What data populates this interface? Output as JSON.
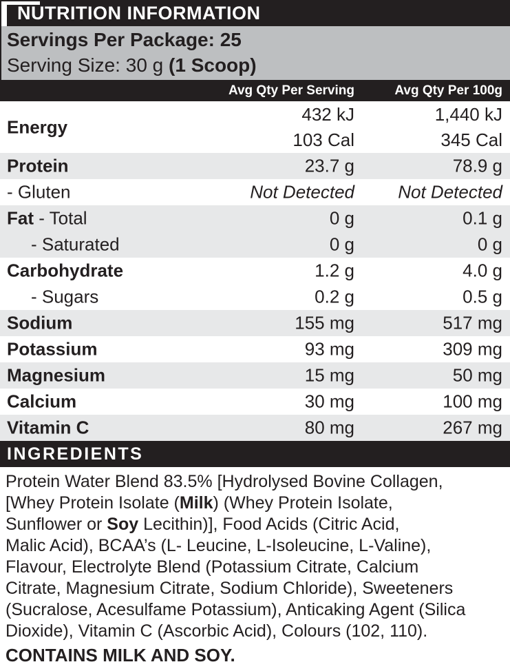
{
  "colors": {
    "ink_black": "#231f20",
    "band_gray": "#bdbfc1",
    "stripe_gray": "#e7e8e9",
    "text_white": "#ffffff"
  },
  "header": {
    "title": "NUTRITION INFORMATION",
    "servings_line": "Servings Per Package: 25",
    "serving_size_prefix": "Serving Size: 30 g ",
    "serving_size_bold": "(1 Scoop)"
  },
  "columns": {
    "per_serving": "Avg Qty Per Serving",
    "per_100g": "Avg Qty Per 100g"
  },
  "table": {
    "rows": [
      {
        "label_bold": "Energy",
        "label_plain": "",
        "serving": [
          "432 kJ",
          "103 Cal"
        ],
        "per100": [
          "1,440 kJ",
          "345 Cal"
        ],
        "shaded": false,
        "indent": false,
        "italic": false,
        "tall": true
      },
      {
        "label_bold": "Protein",
        "label_plain": "",
        "serving": "23.7 g",
        "per100": "78.9 g",
        "shaded": true,
        "indent": false,
        "italic": false,
        "tall": false
      },
      {
        "label_bold": "",
        "label_plain": "- Gluten",
        "serving": "Not Detected",
        "per100": "Not Detected",
        "shaded": false,
        "indent": false,
        "italic": true,
        "tall": false
      },
      {
        "label_bold": "Fat",
        "label_plain": " - Total",
        "serving": "0 g",
        "per100": "0.1 g",
        "shaded": true,
        "indent": false,
        "italic": false,
        "tall": false
      },
      {
        "label_bold": "",
        "label_plain": "- Saturated",
        "serving": "0 g",
        "per100": "0 g",
        "shaded": true,
        "indent": true,
        "italic": false,
        "tall": false
      },
      {
        "label_bold": "Carbohydrate",
        "label_plain": "",
        "serving": "1.2 g",
        "per100": "4.0 g",
        "shaded": false,
        "indent": false,
        "italic": false,
        "tall": false
      },
      {
        "label_bold": "",
        "label_plain": "- Sugars",
        "serving": "0.2 g",
        "per100": "0.5 g",
        "shaded": false,
        "indent": true,
        "italic": false,
        "tall": false
      },
      {
        "label_bold": "Sodium",
        "label_plain": "",
        "serving": "155 mg",
        "per100": "517 mg",
        "shaded": true,
        "indent": false,
        "italic": false,
        "tall": false
      },
      {
        "label_bold": "Potassium",
        "label_plain": "",
        "serving": "93 mg",
        "per100": "309 mg",
        "shaded": false,
        "indent": false,
        "italic": false,
        "tall": false
      },
      {
        "label_bold": "Magnesium",
        "label_plain": "",
        "serving": "15 mg",
        "per100": "50 mg",
        "shaded": true,
        "indent": false,
        "italic": false,
        "tall": false
      },
      {
        "label_bold": "Calcium",
        "label_plain": "",
        "serving": "30 mg",
        "per100": "100 mg",
        "shaded": false,
        "indent": false,
        "italic": false,
        "tall": false
      },
      {
        "label_bold": "Vitamin C",
        "label_plain": "",
        "serving": "80 mg",
        "per100": "267 mg",
        "shaded": true,
        "indent": false,
        "italic": false,
        "tall": false
      }
    ]
  },
  "ingredients": {
    "heading": "INGREDIENTS",
    "lines": [
      [
        {
          "t": "Protein Water Blend 83.5% [Hydrolysed Bovine Collagen,"
        }
      ],
      [
        {
          "t": "[Whey Protein Isolate ("
        },
        {
          "t": "Milk",
          "b": true
        },
        {
          "t": ") (Whey Protein Isolate,"
        }
      ],
      [
        {
          "t": "Sunflower or "
        },
        {
          "t": "Soy",
          "b": true
        },
        {
          "t": " Lecithin)], Food Acids (Citric Acid,"
        }
      ],
      [
        {
          "t": "Malic Acid), BCAA’s (L- Leucine, L-Isoleucine, L-Valine),"
        }
      ],
      [
        {
          "t": "Flavour, Electrolyte Blend (Potassium Citrate, Calcium"
        }
      ],
      [
        {
          "t": "Citrate, Magnesium Citrate, Sodium Chloride), Sweeteners"
        }
      ],
      [
        {
          "t": "(Sucralose, Acesulfame Potassium), Anticaking Agent (Silica"
        }
      ],
      [
        {
          "t": "Dioxide), Vitamin C (Ascorbic Acid), Colours (102, 110)."
        }
      ]
    ],
    "contains": "CONTAINS MILK AND SOY."
  }
}
